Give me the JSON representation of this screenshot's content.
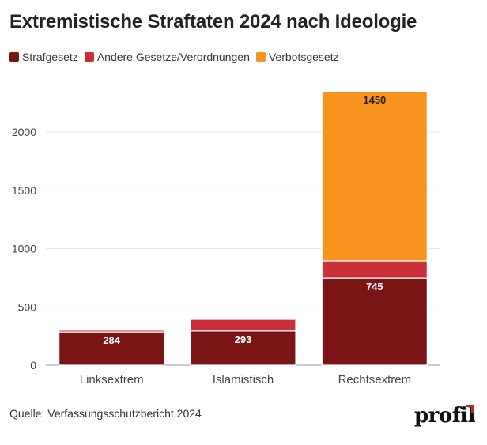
{
  "title": "Extremistische Straftaten 2024 nach Ideologie",
  "source": "Quelle: Verfassungsschutzbericht 2024",
  "logo": "profil",
  "colors": {
    "strafgesetz": "#7b1515",
    "andere": "#c9303a",
    "verbotsgesetz": "#f7941d",
    "logo_accent": "#c0272d"
  },
  "chart_data": {
    "type": "bar",
    "stacked": true,
    "categories": [
      "Linksextrem",
      "Islamistisch",
      "Rechtsextrem"
    ],
    "series": [
      {
        "name": "Strafgesetz",
        "values": [
          284,
          293,
          745
        ],
        "color": "#7b1515",
        "labels": [
          "284",
          "293",
          "745"
        ]
      },
      {
        "name": "Andere Gesetze/Verordnungen",
        "values": [
          15,
          100,
          150
        ],
        "color": "#c9303a",
        "labels": [
          "",
          "",
          ""
        ]
      },
      {
        "name": "Verbotsgesetz",
        "values": [
          0,
          0,
          1450
        ],
        "color": "#f7941d",
        "labels": [
          "",
          "",
          "1450"
        ]
      }
    ],
    "yticks": [
      "0",
      "500",
      "1000",
      "1500",
      "2000"
    ],
    "ylim": [
      0,
      2400
    ],
    "grid": true,
    "legend_position": "top-left"
  }
}
